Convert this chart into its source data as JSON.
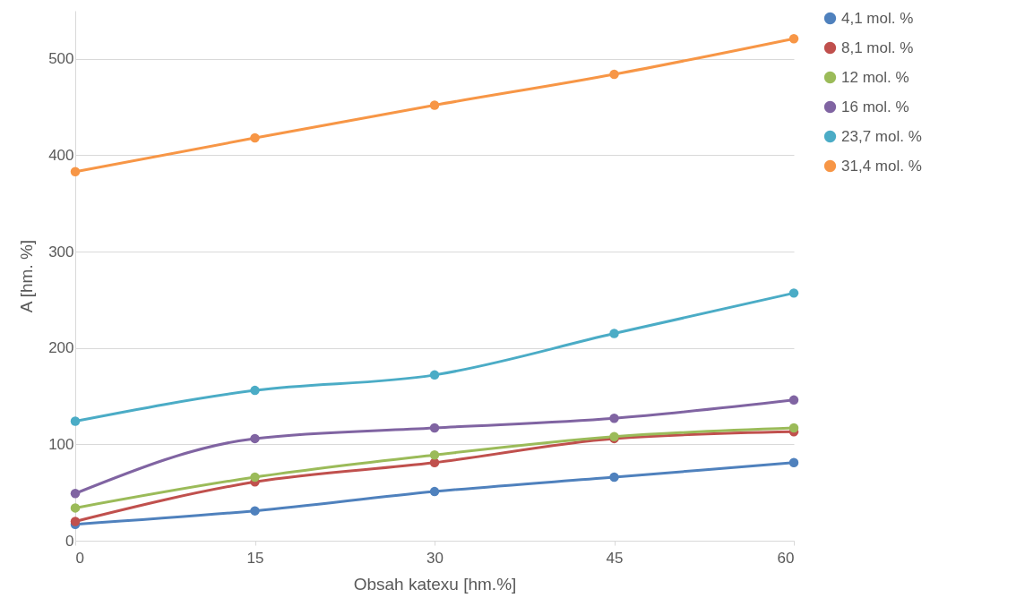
{
  "chart_data": {
    "type": "line",
    "xlabel": "Obsah katexu [hm.%]",
    "ylabel": "A [hm. %]",
    "x": [
      0,
      15,
      30,
      45,
      60
    ],
    "xlim": [
      0,
      60
    ],
    "xticks": [
      0,
      15,
      30,
      45,
      60
    ],
    "ylim": [
      0,
      550
    ],
    "yticks": [
      0,
      100,
      200,
      300,
      400,
      500
    ],
    "grid": "y",
    "legend": "right",
    "marker": "circle",
    "line_style": "solid",
    "series": [
      {
        "name": "4,1 mol. %",
        "color": "#4f81bd",
        "values": [
          17,
          31,
          51,
          66,
          81
        ]
      },
      {
        "name": "8,1 mol. %",
        "color": "#c0504d",
        "values": [
          20,
          61,
          81,
          106,
          113
        ]
      },
      {
        "name": "12 mol. %",
        "color": "#9bbb59",
        "values": [
          34,
          66,
          89,
          108,
          117
        ]
      },
      {
        "name": "16 mol. %",
        "color": "#8064a2",
        "values": [
          49,
          106,
          117,
          127,
          146
        ]
      },
      {
        "name": "23,7 mol. %",
        "color": "#4bacc6",
        "values": [
          124,
          156,
          172,
          215,
          257
        ]
      },
      {
        "name": "31,4 mol. %",
        "color": "#f79646",
        "values": [
          383,
          418,
          452,
          484,
          521
        ]
      }
    ]
  }
}
